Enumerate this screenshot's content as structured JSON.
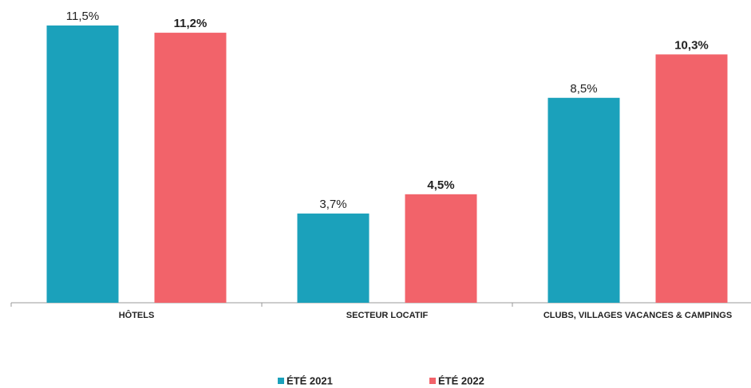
{
  "chart_data": {
    "type": "bar",
    "categories": [
      "HÔTELS",
      "SECTEUR LOCATIF",
      "CLUBS, VILLAGES VACANCES & CAMPINGS"
    ],
    "series": [
      {
        "name": "ÉTÉ 2021",
        "color": "#1ba1bb",
        "values": [
          11.5,
          3.7,
          8.5
        ],
        "value_labels": [
          "11,5%",
          "3,7%",
          "8,5%"
        ]
      },
      {
        "name": "ÉTÉ 2022",
        "color": "#f2636a",
        "values": [
          11.2,
          4.5,
          10.3
        ],
        "value_labels": [
          "11,2%",
          "4,5%",
          "10,3%"
        ]
      }
    ],
    "legend": "bottom"
  }
}
